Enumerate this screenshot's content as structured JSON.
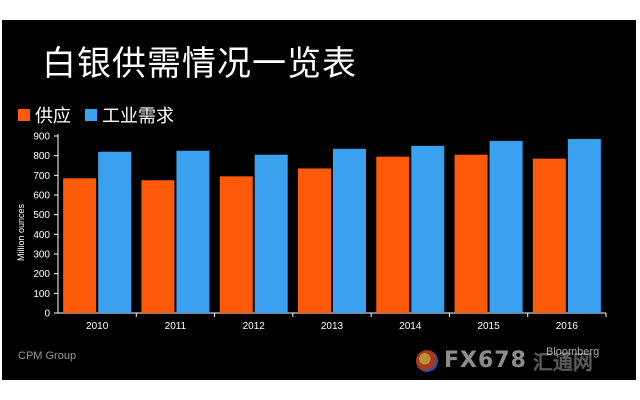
{
  "title": "白银供需情况一览表",
  "legend": [
    {
      "label": "供应",
      "color": "#ff5a0a"
    },
    {
      "label": "工业需求",
      "color": "#3aa0f0"
    }
  ],
  "source": "CPM Group",
  "watermark": {
    "fx": "FX678",
    "cn": "汇通网",
    "bloomberg": "Bloomberg"
  },
  "colors": {
    "background": "#000000",
    "supply": "#ff5a0a",
    "demand": "#3aa0f0",
    "axis": "#ffffff"
  },
  "chart_data": {
    "type": "bar",
    "categories": [
      "2010",
      "2011",
      "2012",
      "2013",
      "2014",
      "2015",
      "2016"
    ],
    "series": [
      {
        "name": "供应",
        "values": [
          685,
          675,
          695,
          735,
          795,
          805,
          785
        ]
      },
      {
        "name": "工业需求",
        "values": [
          820,
          825,
          805,
          835,
          850,
          875,
          885
        ]
      }
    ],
    "ylabel": "Million ounces",
    "ylim": [
      0,
      900
    ],
    "yticks": [
      0,
      100,
      200,
      300,
      400,
      500,
      600,
      700,
      800,
      900
    ],
    "grid": false,
    "legend_position": "top-left"
  }
}
